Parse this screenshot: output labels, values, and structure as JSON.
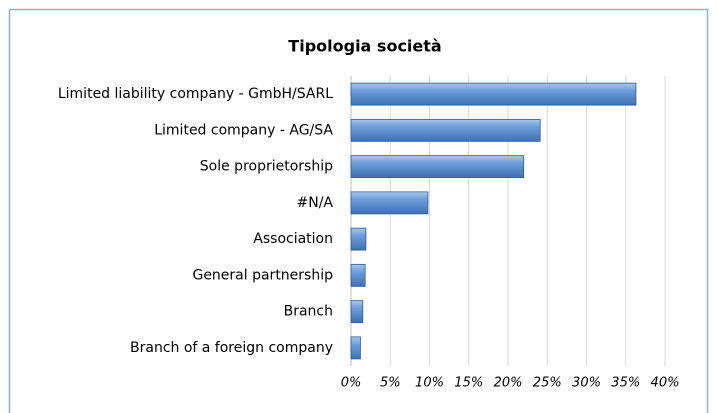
{
  "chart_data": {
    "type": "bar",
    "orientation": "horizontal",
    "title": "Tipologia società",
    "categories": [
      "Limited liability company - GmbH/SARL",
      "Limited company - AG/SA",
      "Sole proprietorship",
      "#N/A",
      "Association",
      "General partnership",
      "Branch",
      "Branch of a foreign company"
    ],
    "values": [
      36.3,
      24.1,
      22.0,
      9.8,
      1.9,
      1.8,
      1.5,
      1.2
    ],
    "color": "#5b8fd0",
    "xlim": [
      0,
      40
    ],
    "xticks": [
      {
        "value": 0,
        "label": "0%"
      },
      {
        "value": 5,
        "label": "5%"
      },
      {
        "value": 10,
        "label": "10%"
      },
      {
        "value": 15,
        "label": "15%"
      },
      {
        "value": 20,
        "label": "20%"
      },
      {
        "value": 25,
        "label": "25%"
      },
      {
        "value": 30,
        "label": "30%"
      },
      {
        "value": 35,
        "label": "35%"
      },
      {
        "value": 40,
        "label": "40%"
      }
    ],
    "grid": true
  }
}
